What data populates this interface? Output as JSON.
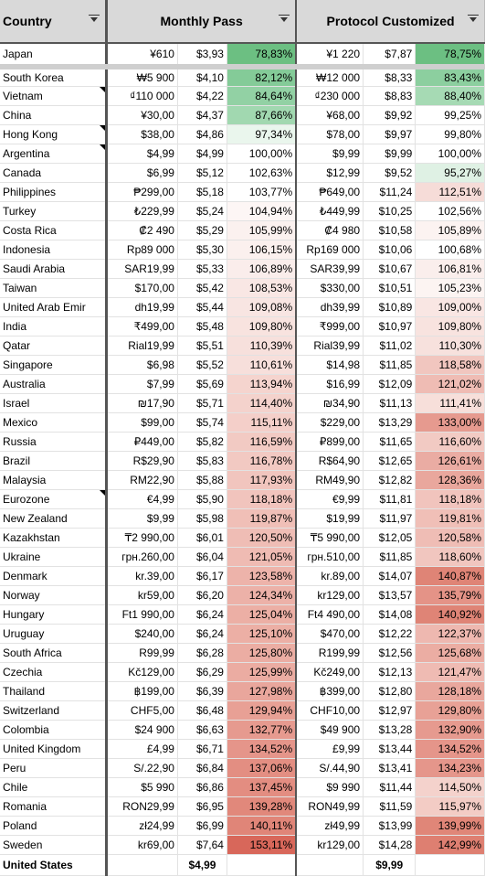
{
  "columns": {
    "country": "Country",
    "monthly_pass": "Monthly Pass",
    "protocol_customized": "Protocol Customized"
  },
  "rows": [
    {
      "country": "Japan",
      "mp_local": "¥610",
      "mp_usd": "$3,93",
      "mp_pct": "78,83%",
      "pc_local": "¥1 220",
      "pc_usd": "$7,87",
      "pc_pct": "78,75%",
      "mp_color": "#6cbf82",
      "pc_color": "#6cbf82",
      "note": false
    },
    {
      "country": "South Korea",
      "mp_local": "₩5 900",
      "mp_usd": "$4,10",
      "mp_pct": "82,12%",
      "pc_local": "₩12 000",
      "pc_usd": "$8,33",
      "pc_pct": "83,43%",
      "mp_color": "#84cb98",
      "pc_color": "#8ccf9f",
      "note": false
    },
    {
      "country": "Vietnam",
      "mp_local": "₫110 000",
      "mp_usd": "$4,22",
      "mp_pct": "84,64%",
      "pc_local": "₫230 000",
      "pc_usd": "$8,83",
      "pc_pct": "88,40%",
      "mp_color": "#92d1a4",
      "pc_color": "#a6dab4",
      "note": true
    },
    {
      "country": "China",
      "mp_local": "¥30,00",
      "mp_usd": "$4,37",
      "mp_pct": "87,66%",
      "pc_local": "¥68,00",
      "pc_usd": "$9,92",
      "pc_pct": "99,25%",
      "mp_color": "#a1d8b0",
      "pc_color": "#ffffff",
      "note": false
    },
    {
      "country": "Hong Kong",
      "mp_local": "$38,00",
      "mp_usd": "$4,86",
      "mp_pct": "97,34%",
      "pc_local": "$78,00",
      "pc_usd": "$9,97",
      "pc_pct": "99,80%",
      "mp_color": "#eaf6ed",
      "pc_color": "#ffffff",
      "note": true
    },
    {
      "country": "Argentina",
      "mp_local": "$4,99",
      "mp_usd": "$4,99",
      "mp_pct": "100,00%",
      "pc_local": "$9,99",
      "pc_usd": "$9,99",
      "pc_pct": "100,00%",
      "mp_color": "#ffffff",
      "pc_color": "#ffffff",
      "note": true
    },
    {
      "country": "Canada",
      "mp_local": "$6,99",
      "mp_usd": "$5,12",
      "mp_pct": "102,63%",
      "pc_local": "$12,99",
      "pc_usd": "$9,52",
      "pc_pct": "95,27%",
      "mp_color": "#ffffff",
      "pc_color": "#dff1e4",
      "note": false
    },
    {
      "country": "Philippines",
      "mp_local": "₱299,00",
      "mp_usd": "$5,18",
      "mp_pct": "103,77%",
      "pc_local": "₱649,00",
      "pc_usd": "$11,24",
      "pc_pct": "112,51%",
      "mp_color": "#ffffff",
      "pc_color": "#f6dcd8",
      "note": false
    },
    {
      "country": "Turkey",
      "mp_local": "₺229,99",
      "mp_usd": "$5,24",
      "mp_pct": "104,94%",
      "pc_local": "₺449,99",
      "pc_usd": "$10,25",
      "pc_pct": "102,56%",
      "mp_color": "#fdf6f5",
      "pc_color": "#ffffff",
      "note": false
    },
    {
      "country": "Costa Rica",
      "mp_local": "₡2 490",
      "mp_usd": "$5,29",
      "mp_pct": "105,99%",
      "pc_local": "₡4 980",
      "pc_usd": "$10,58",
      "pc_pct": "105,89%",
      "mp_color": "#fbf1ef",
      "pc_color": "#fcf3f1",
      "note": false
    },
    {
      "country": "Indonesia",
      "mp_local": "Rp89 000",
      "mp_usd": "$5,30",
      "mp_pct": "106,15%",
      "pc_local": "Rp169 000",
      "pc_usd": "$10,06",
      "pc_pct": "100,68%",
      "mp_color": "#fbf0ee",
      "pc_color": "#ffffff",
      "note": false
    },
    {
      "country": "Saudi Arabia",
      "mp_local": "SAR19,99",
      "mp_usd": "$5,33",
      "mp_pct": "106,89%",
      "pc_local": "SAR39,99",
      "pc_usd": "$10,67",
      "pc_pct": "106,81%",
      "mp_color": "#faedeb",
      "pc_color": "#faeeec",
      "note": false
    },
    {
      "country": "Taiwan",
      "mp_local": "$170,00",
      "mp_usd": "$5,42",
      "mp_pct": "108,53%",
      "pc_local": "$330,00",
      "pc_usd": "$10,51",
      "pc_pct": "105,23%",
      "mp_color": "#f9e7e4",
      "pc_color": "#fcf4f2",
      "note": false
    },
    {
      "country": "United Arab Emir",
      "mp_local": "dh19,99",
      "mp_usd": "$5,44",
      "mp_pct": "109,08%",
      "pc_local": "dh39,99",
      "pc_usd": "$10,89",
      "pc_pct": "109,00%",
      "mp_color": "#f8e5e2",
      "pc_color": "#f9e6e3",
      "note": false
    },
    {
      "country": "India",
      "mp_local": "₹499,00",
      "mp_usd": "$5,48",
      "mp_pct": "109,80%",
      "pc_local": "₹999,00",
      "pc_usd": "$10,97",
      "pc_pct": "109,80%",
      "mp_color": "#f8e3df",
      "pc_color": "#f8e3df",
      "note": false
    },
    {
      "country": "Qatar",
      "mp_local": "Rial19,99",
      "mp_usd": "$5,51",
      "mp_pct": "110,39%",
      "pc_local": "Rial39,99",
      "pc_usd": "$11,02",
      "pc_pct": "110,30%",
      "mp_color": "#f7e0dc",
      "pc_color": "#f7e1dd",
      "note": false
    },
    {
      "country": "Singapore",
      "mp_local": "$6,98",
      "mp_usd": "$5,52",
      "mp_pct": "110,61%",
      "pc_local": "$14,98",
      "pc_usd": "$11,85",
      "pc_pct": "118,58%",
      "mp_color": "#f7dfdb",
      "pc_color": "#f1c6bf",
      "note": false
    },
    {
      "country": "Australia",
      "mp_local": "$7,99",
      "mp_usd": "$5,69",
      "mp_pct": "113,94%",
      "pc_local": "$16,99",
      "pc_usd": "$12,09",
      "pc_pct": "121,02%",
      "mp_color": "#f5d4ce",
      "pc_color": "#efbcb4",
      "note": false
    },
    {
      "country": "Israel",
      "mp_local": "₪17,90",
      "mp_usd": "$5,71",
      "mp_pct": "114,40%",
      "pc_local": "₪34,90",
      "pc_usd": "$11,13",
      "pc_pct": "111,41%",
      "mp_color": "#f4d2cc",
      "pc_color": "#f7dfda",
      "note": false
    },
    {
      "country": "Mexico",
      "mp_local": "$99,00",
      "mp_usd": "$5,74",
      "mp_pct": "115,11%",
      "pc_local": "$229,00",
      "pc_usd": "$13,29",
      "pc_pct": "133,00%",
      "mp_color": "#f4cfc9",
      "pc_color": "#e69a8f",
      "note": false
    },
    {
      "country": "Russia",
      "mp_local": "₽449,00",
      "mp_usd": "$5,82",
      "mp_pct": "116,59%",
      "pc_local": "₽899,00",
      "pc_usd": "$11,65",
      "pc_pct": "116,60%",
      "mp_color": "#f2cac3",
      "pc_color": "#f2cac3",
      "note": false
    },
    {
      "country": "Brazil",
      "mp_local": "R$29,90",
      "mp_usd": "$5,83",
      "mp_pct": "116,78%",
      "pc_local": "R$64,90",
      "pc_usd": "$12,65",
      "pc_pct": "126,61%",
      "mp_color": "#f2c9c2",
      "pc_color": "#eaaca3",
      "note": false
    },
    {
      "country": "Malaysia",
      "mp_local": "RM22,90",
      "mp_usd": "$5,88",
      "mp_pct": "117,93%",
      "pc_local": "RM49,90",
      "pc_usd": "$12,82",
      "pc_pct": "128,36%",
      "mp_color": "#f1c5be",
      "pc_color": "#e9a79d",
      "note": false
    },
    {
      "country": "Eurozone",
      "mp_local": "€4,99",
      "mp_usd": "$5,90",
      "mp_pct": "118,18%",
      "pc_local": "€9,99",
      "pc_usd": "$11,81",
      "pc_pct": "118,18%",
      "mp_color": "#f1c4bd",
      "pc_color": "#f1c4bd",
      "note": true
    },
    {
      "country": "New Zealand",
      "mp_local": "$9,99",
      "mp_usd": "$5,98",
      "mp_pct": "119,87%",
      "pc_local": "$19,99",
      "pc_usd": "$11,97",
      "pc_pct": "119,81%",
      "mp_color": "#f0bfb7",
      "pc_color": "#f0bfb7",
      "note": false
    },
    {
      "country": "Kazakhstan",
      "mp_local": "₸2 990,00",
      "mp_usd": "$6,01",
      "mp_pct": "120,50%",
      "pc_local": "₸5 990,00",
      "pc_usd": "$12,05",
      "pc_pct": "120,58%",
      "mp_color": "#efbdb5",
      "pc_color": "#efbdb5",
      "note": false
    },
    {
      "country": "Ukraine",
      "mp_local": "грн.260,00",
      "mp_usd": "$6,04",
      "mp_pct": "121,05%",
      "pc_local": "грн.510,00",
      "pc_usd": "$11,85",
      "pc_pct": "118,60%",
      "mp_color": "#efbbb3",
      "pc_color": "#f1c6bf",
      "note": false
    },
    {
      "country": "Denmark",
      "mp_local": "kr.39,00",
      "mp_usd": "$6,17",
      "mp_pct": "123,58%",
      "pc_local": "kr.89,00",
      "pc_usd": "$14,07",
      "pc_pct": "140,87%",
      "mp_color": "#edb3aa",
      "pc_color": "#df8476",
      "note": false
    },
    {
      "country": "Norway",
      "mp_local": "kr59,00",
      "mp_usd": "$6,20",
      "mp_pct": "124,34%",
      "pc_local": "kr129,00",
      "pc_usd": "$13,57",
      "pc_pct": "135,79%",
      "mp_color": "#ecb1a8",
      "pc_color": "#e49387",
      "note": false
    },
    {
      "country": "Hungary",
      "mp_local": "Ft1 990,00",
      "mp_usd": "$6,24",
      "mp_pct": "125,04%",
      "pc_local": "Ft4 490,00",
      "pc_usd": "$14,08",
      "pc_pct": "140,92%",
      "mp_color": "#ecafa5",
      "pc_color": "#df8476",
      "note": false
    },
    {
      "country": "Uruguay",
      "mp_local": "$240,00",
      "mp_usd": "$6,24",
      "mp_pct": "125,10%",
      "pc_local": "$470,00",
      "pc_usd": "$12,22",
      "pc_pct": "122,37%",
      "mp_color": "#ecafa5",
      "pc_color": "#eeb8b0",
      "note": false
    },
    {
      "country": "South Africa",
      "mp_local": "R99,99",
      "mp_usd": "$6,28",
      "mp_pct": "125,80%",
      "pc_local": "R199,99",
      "pc_usd": "$12,56",
      "pc_pct": "125,68%",
      "mp_color": "#ebada3",
      "pc_color": "#ebada3",
      "note": false
    },
    {
      "country": "Czechia",
      "mp_local": "Kč129,00",
      "mp_usd": "$6,29",
      "mp_pct": "125,99%",
      "pc_local": "Kč249,00",
      "pc_usd": "$12,13",
      "pc_pct": "121,47%",
      "mp_color": "#ebaca2",
      "pc_color": "#efbbb3",
      "note": false
    },
    {
      "country": "Thailand",
      "mp_local": "฿199,00",
      "mp_usd": "$6,39",
      "mp_pct": "127,98%",
      "pc_local": "฿399,00",
      "pc_usd": "$12,80",
      "pc_pct": "128,18%",
      "mp_color": "#e9a69c",
      "pc_color": "#e9a79d",
      "note": false
    },
    {
      "country": "Switzerland",
      "mp_local": "CHF5,00",
      "mp_usd": "$6,48",
      "mp_pct": "129,94%",
      "pc_local": "CHF10,00",
      "pc_usd": "$12,97",
      "pc_pct": "129,80%",
      "mp_color": "#e8a095",
      "pc_color": "#e8a196",
      "note": false
    },
    {
      "country": "Colombia",
      "mp_local": "$24 900",
      "mp_usd": "$6,63",
      "mp_pct": "132,77%",
      "pc_local": "$49 900",
      "pc_usd": "$13,28",
      "pc_pct": "132,90%",
      "mp_color": "#e69a8f",
      "pc_color": "#e69a8f",
      "note": false
    },
    {
      "country": "United Kingdom",
      "mp_local": "£4,99",
      "mp_usd": "$6,71",
      "mp_pct": "134,52%",
      "pc_local": "£9,99",
      "pc_usd": "$13,44",
      "pc_pct": "134,52%",
      "mp_color": "#e5958a",
      "pc_color": "#e5958a",
      "note": false
    },
    {
      "country": "Peru",
      "mp_local": "S/.22,90",
      "mp_usd": "$6,84",
      "mp_pct": "137,06%",
      "pc_local": "S/.44,90",
      "pc_usd": "$13,41",
      "pc_pct": "134,23%",
      "mp_color": "#e38e82",
      "pc_color": "#e5968b",
      "note": false
    },
    {
      "country": "Chile",
      "mp_local": "$5 990",
      "mp_usd": "$6,86",
      "mp_pct": "137,45%",
      "pc_local": "$9 990",
      "pc_usd": "$11,44",
      "pc_pct": "114,50%",
      "mp_color": "#e38d81",
      "pc_color": "#f4d2cc",
      "note": false
    },
    {
      "country": "Romania",
      "mp_local": "RON29,99",
      "mp_usd": "$6,95",
      "mp_pct": "139,28%",
      "pc_local": "RON49,99",
      "pc_usd": "$11,59",
      "pc_pct": "115,97%",
      "mp_color": "#e1887b",
      "pc_color": "#f3ccc5",
      "note": false
    },
    {
      "country": "Poland",
      "mp_local": "zł24,99",
      "mp_usd": "$6,99",
      "mp_pct": "140,11%",
      "pc_local": "zł49,99",
      "pc_usd": "$13,99",
      "pc_pct": "139,99%",
      "mp_color": "#e08578",
      "pc_color": "#e08678",
      "note": false
    },
    {
      "country": "Sweden",
      "mp_local": "kr69,00",
      "mp_usd": "$7,64",
      "mp_pct": "153,11%",
      "pc_local": "kr129,00",
      "pc_usd": "$14,28",
      "pc_pct": "142,99%",
      "mp_color": "#d8675a",
      "pc_color": "#de7f71",
      "note": false
    }
  ],
  "footer": {
    "country": "United States",
    "mp_usd": "$4,99",
    "pc_usd": "$9,99"
  }
}
